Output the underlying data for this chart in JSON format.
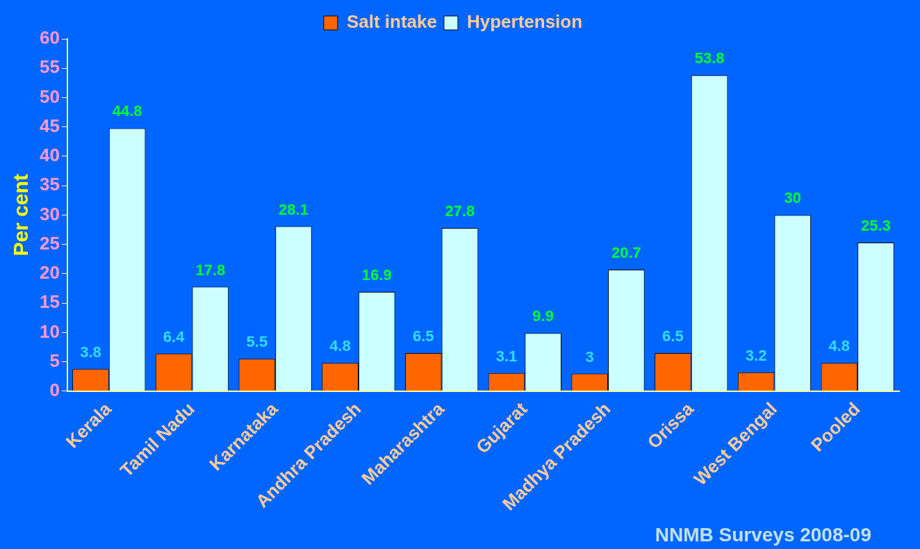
{
  "chart_data": {
    "type": "bar",
    "categories": [
      "Kerala",
      "Tamil Nadu",
      "Karnataka",
      "Andhra Pradesh",
      "Maharashtra",
      "Gujarat",
      "Madhya Pradesh",
      "Orissa",
      "West Bengal",
      "Pooled"
    ],
    "series": [
      {
        "name": "Salt intake",
        "color": "#ff6600",
        "values": [
          3.8,
          6.4,
          5.5,
          4.8,
          6.5,
          3.1,
          3,
          6.5,
          3.2,
          4.8
        ]
      },
      {
        "name": "Hypertension",
        "color": "#ccffff",
        "values": [
          44.8,
          17.8,
          28.1,
          16.9,
          27.8,
          9.9,
          20.7,
          53.8,
          30,
          25.3
        ]
      }
    ],
    "ylabel": "Per cent",
    "ylim": [
      0,
      60
    ],
    "yticks": [
      0,
      5,
      10,
      15,
      20,
      25,
      30,
      35,
      40,
      45,
      50,
      55,
      60
    ],
    "grid": false,
    "legend": "top",
    "data_labels": true,
    "annotations": [
      "NNMB Surveys 2008-09"
    ]
  }
}
